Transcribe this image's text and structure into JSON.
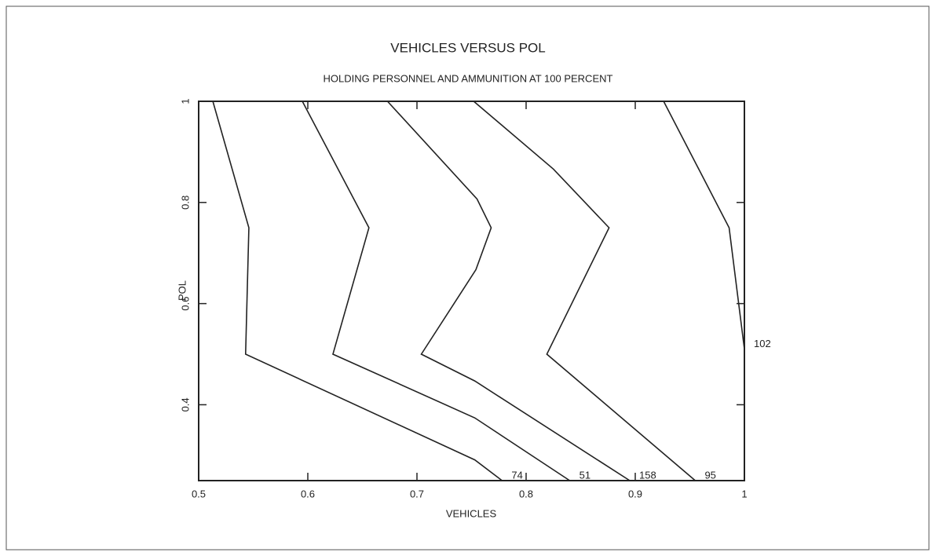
{
  "chart_data": {
    "type": "line",
    "title": "VEHICLES VERSUS POL",
    "subtitle": "HOLDING PERSONNEL AND AMMUNITION AT 100 PERCENT",
    "x_label": "VEHICLES",
    "y_label": "POL",
    "xlim": [
      0.5,
      1.0
    ],
    "ylim": [
      0.25,
      1.0
    ],
    "xticks": [
      0.5,
      0.6,
      0.7,
      0.8,
      0.9,
      1.0
    ],
    "yticks": [
      0.4,
      0.6,
      0.8,
      1.0
    ],
    "color": "#222222",
    "series": [
      {
        "name": "74",
        "x": [
          0.513,
          0.546,
          0.543,
          0.753,
          0.778
        ],
        "values": [
          1.0,
          0.75,
          0.5,
          0.291,
          0.25
        ]
      },
      {
        "name": "51",
        "x": [
          0.595,
          0.656,
          0.623,
          0.753,
          0.84
        ],
        "values": [
          1.0,
          0.75,
          0.5,
          0.374,
          0.25
        ]
      },
      {
        "name": "158",
        "x": [
          0.673,
          0.755,
          0.768,
          0.754,
          0.704,
          0.753,
          0.895
        ],
        "values": [
          1.0,
          0.807,
          0.75,
          0.667,
          0.5,
          0.447,
          0.25
        ]
      },
      {
        "name": "95",
        "x": [
          0.752,
          0.825,
          0.876,
          0.819,
          0.955
        ],
        "values": [
          1.0,
          0.866,
          0.75,
          0.5,
          0.25
        ]
      },
      {
        "name": "102",
        "x": [
          0.926,
          0.986,
          1.0
        ],
        "values": [
          1.0,
          0.75,
          0.51
        ]
      }
    ]
  }
}
